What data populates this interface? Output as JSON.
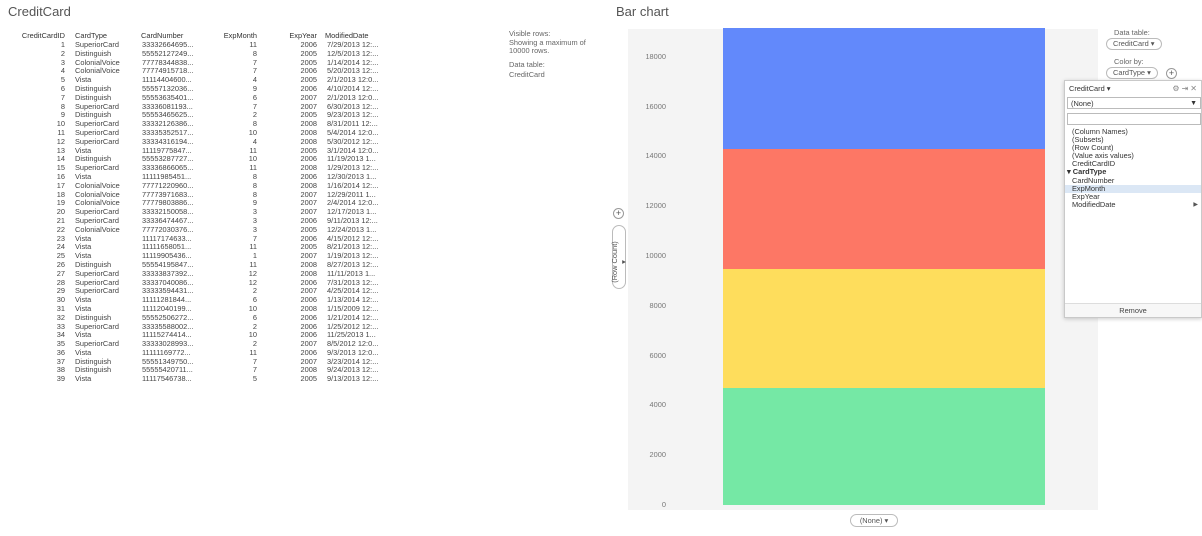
{
  "table_panel": {
    "title": "CreditCard"
  },
  "table": {
    "columns": [
      "CreditCardID",
      "CardType",
      "CardNumber",
      "ExpMonth",
      "ExpYear",
      "ModifiedDate"
    ],
    "rows": [
      [
        "1",
        "SuperiorCard",
        "33332664695...",
        "11",
        "2006",
        "7/29/2013 12:..."
      ],
      [
        "2",
        "Distinguish",
        "55552127249...",
        "8",
        "2005",
        "12/5/2013 12:..."
      ],
      [
        "3",
        "ColonialVoice",
        "77778344838...",
        "7",
        "2005",
        "1/14/2014 12:..."
      ],
      [
        "4",
        "ColonialVoice",
        "77774915718...",
        "7",
        "2006",
        "5/20/2013 12:..."
      ],
      [
        "5",
        "Vista",
        "11114404600...",
        "4",
        "2005",
        "2/1/2013 12:0..."
      ],
      [
        "6",
        "Distinguish",
        "55557132036...",
        "9",
        "2006",
        "4/10/2014 12:..."
      ],
      [
        "7",
        "Distinguish",
        "55553635401...",
        "6",
        "2007",
        "2/1/2013 12:0..."
      ],
      [
        "8",
        "SuperiorCard",
        "33336081193...",
        "7",
        "2007",
        "6/30/2013 12:..."
      ],
      [
        "9",
        "Distinguish",
        "55553465625...",
        "2",
        "2005",
        "9/23/2013 12:..."
      ],
      [
        "10",
        "SuperiorCard",
        "33332126386...",
        "8",
        "2008",
        "8/31/2011 12:..."
      ],
      [
        "11",
        "SuperiorCard",
        "33335352517...",
        "10",
        "2008",
        "5/4/2014 12:0..."
      ],
      [
        "12",
        "SuperiorCard",
        "33334316194...",
        "4",
        "2008",
        "5/30/2012 12:..."
      ],
      [
        "13",
        "Vista",
        "11119775847...",
        "11",
        "2005",
        "3/1/2014 12:0..."
      ],
      [
        "14",
        "Distinguish",
        "55553287727...",
        "10",
        "2006",
        "11/19/2013 1..."
      ],
      [
        "15",
        "SuperiorCard",
        "33336866065...",
        "11",
        "2008",
        "1/29/2013 12:..."
      ],
      [
        "16",
        "Vista",
        "11111985451...",
        "8",
        "2006",
        "12/30/2013 1..."
      ],
      [
        "17",
        "ColonialVoice",
        "77771220960...",
        "8",
        "2008",
        "1/16/2014 12:..."
      ],
      [
        "18",
        "ColonialVoice",
        "77773971683...",
        "8",
        "2007",
        "12/29/2011 1..."
      ],
      [
        "19",
        "ColonialVoice",
        "77779803886...",
        "9",
        "2007",
        "2/4/2014 12:0..."
      ],
      [
        "20",
        "SuperiorCard",
        "33332150058...",
        "3",
        "2007",
        "12/17/2013 1..."
      ],
      [
        "21",
        "SuperiorCard",
        "33336474467...",
        "3",
        "2006",
        "9/11/2013 12:..."
      ],
      [
        "22",
        "ColonialVoice",
        "77772030376...",
        "3",
        "2005",
        "12/24/2013 1..."
      ],
      [
        "23",
        "Vista",
        "11117174633...",
        "7",
        "2006",
        "4/15/2012 12:..."
      ],
      [
        "24",
        "Vista",
        "11111658051...",
        "11",
        "2005",
        "8/21/2013 12:..."
      ],
      [
        "25",
        "Vista",
        "11119905436...",
        "1",
        "2007",
        "1/19/2013 12:..."
      ],
      [
        "26",
        "Distinguish",
        "55554195847...",
        "11",
        "2008",
        "8/27/2013 12:..."
      ],
      [
        "27",
        "SuperiorCard",
        "33333837392...",
        "12",
        "2008",
        "11/11/2013 1..."
      ],
      [
        "28",
        "SuperiorCard",
        "33337040086...",
        "12",
        "2006",
        "7/31/2013 12:..."
      ],
      [
        "29",
        "SuperiorCard",
        "33333594431...",
        "2",
        "2007",
        "4/25/2014 12:..."
      ],
      [
        "30",
        "Vista",
        "11111281844...",
        "6",
        "2006",
        "1/13/2014 12:..."
      ],
      [
        "31",
        "Vista",
        "11112040199...",
        "10",
        "2008",
        "1/15/2009 12:..."
      ],
      [
        "32",
        "Distinguish",
        "55552506272...",
        "6",
        "2006",
        "1/21/2014 12:..."
      ],
      [
        "33",
        "SuperiorCard",
        "33335588002...",
        "2",
        "2006",
        "1/25/2012 12:..."
      ],
      [
        "34",
        "Vista",
        "11115274414...",
        "10",
        "2006",
        "11/25/2013 1..."
      ],
      [
        "35",
        "SuperiorCard",
        "33333028993...",
        "2",
        "2007",
        "8/5/2012 12:0..."
      ],
      [
        "36",
        "Vista",
        "11111169772...",
        "11",
        "2006",
        "9/3/2013 12:0..."
      ],
      [
        "37",
        "Distinguish",
        "55551349750...",
        "7",
        "2007",
        "3/23/2014 12:..."
      ],
      [
        "38",
        "Distinguish",
        "55555420711...",
        "7",
        "2008",
        "9/24/2013 12:..."
      ],
      [
        "39",
        "Vista",
        "11117546738...",
        "5",
        "2005",
        "9/13/2013 12:..."
      ]
    ]
  },
  "table_info": {
    "visible_rows_label": "Visible rows:",
    "visible_rows_text": "Showing a maximum of 10000 rows.",
    "data_table_label": "Data table:",
    "data_table_value": "CreditCard"
  },
  "chart_panel": {
    "title": "Bar chart",
    "data_table_label": "Data table:",
    "data_table_value": "CreditCard ▾",
    "color_by_label": "Color by:",
    "color_by_value": "CardType ▾",
    "y_axis_button": "(Row Count) ▾",
    "x_axis_button": "(None) ▾"
  },
  "chart_data": {
    "type": "bar",
    "stacked": true,
    "categories": [
      "(None)"
    ],
    "ylim": [
      0,
      19118
    ],
    "yticks": [
      0,
      2000,
      4000,
      6000,
      8000,
      10000,
      12000,
      14000,
      16000,
      18000
    ],
    "segments": [
      {
        "color": "#75e8a5",
        "value": 4690
      },
      {
        "color": "#fedd5c",
        "value": 4770
      },
      {
        "color": "#fd7765",
        "value": 4830
      },
      {
        "color": "#6289fb",
        "value": 4850
      }
    ]
  },
  "dropdown": {
    "header": "CreditCard ▾",
    "selected": "(None)",
    "items": [
      {
        "label": "(Column Names)",
        "style": "normal"
      },
      {
        "label": "(Subsets)",
        "style": "normal"
      },
      {
        "label": "(Row Count)",
        "style": "normal"
      },
      {
        "label": "(Value axis values)",
        "style": "normal"
      },
      {
        "label": "CreditCardID",
        "style": "normal"
      },
      {
        "label": "▾ CardType",
        "style": "bold"
      },
      {
        "label": "CardNumber",
        "style": "normal"
      },
      {
        "label": "ExpMonth",
        "style": "highlight"
      },
      {
        "label": "ExpYear",
        "style": "normal"
      },
      {
        "label": "ModifiedDate",
        "style": "submenu"
      }
    ],
    "remove_label": "Remove",
    "icons": [
      "gear-icon",
      "pin-icon",
      "close-icon"
    ]
  }
}
